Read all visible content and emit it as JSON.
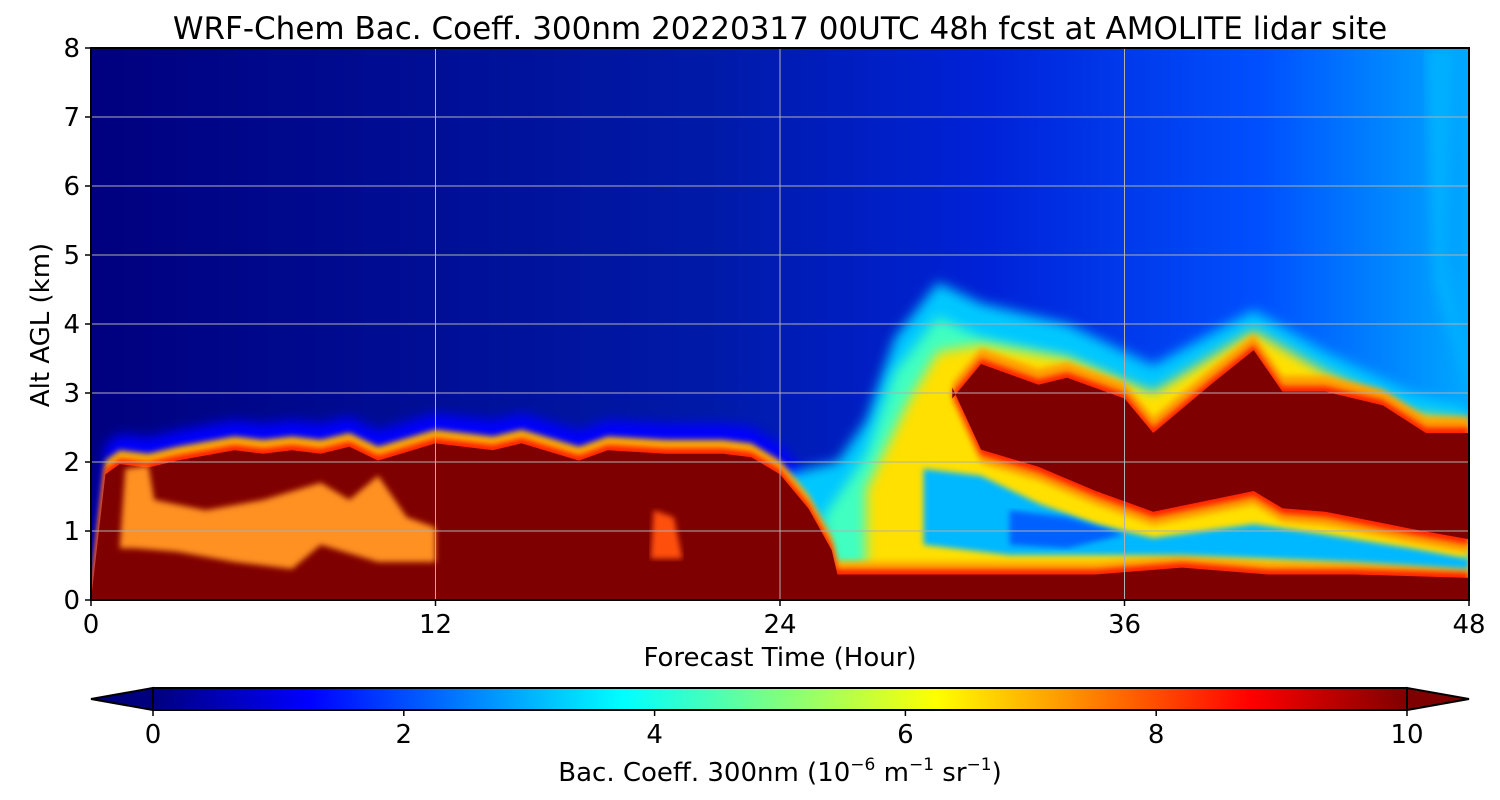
{
  "chart_data": {
    "type": "heatmap",
    "title": "WRF-Chem Bac. Coeff. 300nm  20220317 00UTC 48h fcst at AMOLITE lidar site",
    "xlabel": "Forecast Time (Hour)",
    "ylabel": "Alt AGL (km)",
    "xlim": [
      0,
      48
    ],
    "ylim": [
      0,
      8
    ],
    "x_ticks": [
      0,
      12,
      24,
      36,
      48
    ],
    "y_ticks": [
      0,
      1,
      2,
      3,
      4,
      5,
      6,
      7,
      8
    ],
    "grid": true,
    "colormap": "jet",
    "colorbar": {
      "label": "Bac. Coeff. 300nm  (10",
      "label_exp1": "−6",
      "label_mid": " m",
      "label_exp2": "−1",
      "label_mid2": " sr",
      "label_exp3": "−1",
      "label_end": ")",
      "range": [
        0,
        10
      ],
      "ticks": [
        0,
        2,
        4,
        6,
        8,
        10
      ],
      "extend": "both",
      "orientation": "horizontal"
    },
    "layers": {
      "description_units": "altitude km AGL vs forecast hour",
      "thick_layer_top_km": [
        {
          "x": 0,
          "y": 0.0
        },
        {
          "x": 0.5,
          "y": 1.9
        },
        {
          "x": 1,
          "y": 2.05
        },
        {
          "x": 2,
          "y": 2.0
        },
        {
          "x": 3,
          "y": 2.1
        },
        {
          "x": 5,
          "y": 2.25
        },
        {
          "x": 6,
          "y": 2.2
        },
        {
          "x": 7,
          "y": 2.25
        },
        {
          "x": 8,
          "y": 2.2
        },
        {
          "x": 9,
          "y": 2.3
        },
        {
          "x": 10,
          "y": 2.1
        },
        {
          "x": 12,
          "y": 2.35
        },
        {
          "x": 14,
          "y": 2.25
        },
        {
          "x": 15,
          "y": 2.35
        },
        {
          "x": 17,
          "y": 2.1
        },
        {
          "x": 18,
          "y": 2.25
        },
        {
          "x": 20,
          "y": 2.2
        },
        {
          "x": 22,
          "y": 2.2
        },
        {
          "x": 23,
          "y": 2.15
        },
        {
          "x": 24,
          "y": 1.9
        },
        {
          "x": 25,
          "y": 1.4
        },
        {
          "x": 25.8,
          "y": 0.8
        },
        {
          "x": 26,
          "y": 0.45
        },
        {
          "x": 28,
          "y": 0.45
        },
        {
          "x": 32,
          "y": 0.45
        },
        {
          "x": 35,
          "y": 0.45
        },
        {
          "x": 38,
          "y": 0.55
        },
        {
          "x": 41,
          "y": 0.45
        },
        {
          "x": 44,
          "y": 0.45
        },
        {
          "x": 48,
          "y": 0.4
        }
      ],
      "upper_layer_top_km": [
        {
          "x": 30,
          "y": 3.0
        },
        {
          "x": 31,
          "y": 3.5
        },
        {
          "x": 33,
          "y": 3.2
        },
        {
          "x": 34,
          "y": 3.3
        },
        {
          "x": 36,
          "y": 3.0
        },
        {
          "x": 37,
          "y": 2.5
        },
        {
          "x": 39,
          "y": 3.2
        },
        {
          "x": 40.5,
          "y": 3.7
        },
        {
          "x": 41.5,
          "y": 3.1
        },
        {
          "x": 43,
          "y": 3.1
        },
        {
          "x": 45,
          "y": 2.9
        },
        {
          "x": 46.5,
          "y": 2.5
        },
        {
          "x": 48,
          "y": 2.5
        }
      ],
      "upper_layer_bottom_km": [
        {
          "x": 30,
          "y": 3.0
        },
        {
          "x": 31,
          "y": 2.1
        },
        {
          "x": 33,
          "y": 1.85
        },
        {
          "x": 35,
          "y": 1.5
        },
        {
          "x": 37,
          "y": 1.2
        },
        {
          "x": 40.5,
          "y": 1.5
        },
        {
          "x": 41.5,
          "y": 1.25
        },
        {
          "x": 43,
          "y": 1.2
        },
        {
          "x": 46,
          "y": 0.95
        },
        {
          "x": 48,
          "y": 0.8
        }
      ],
      "aerosol_plume_top_km": [
        {
          "x": 26,
          "y": 2.0
        },
        {
          "x": 27,
          "y": 2.6
        },
        {
          "x": 28,
          "y": 3.8
        },
        {
          "x": 29.5,
          "y": 4.6
        },
        {
          "x": 31,
          "y": 4.3
        },
        {
          "x": 34,
          "y": 4.0
        },
        {
          "x": 37,
          "y": 3.4
        },
        {
          "x": 40.5,
          "y": 4.2
        },
        {
          "x": 43,
          "y": 3.6
        },
        {
          "x": 46,
          "y": 3.0
        },
        {
          "x": 48,
          "y": 2.8
        }
      ]
    }
  }
}
